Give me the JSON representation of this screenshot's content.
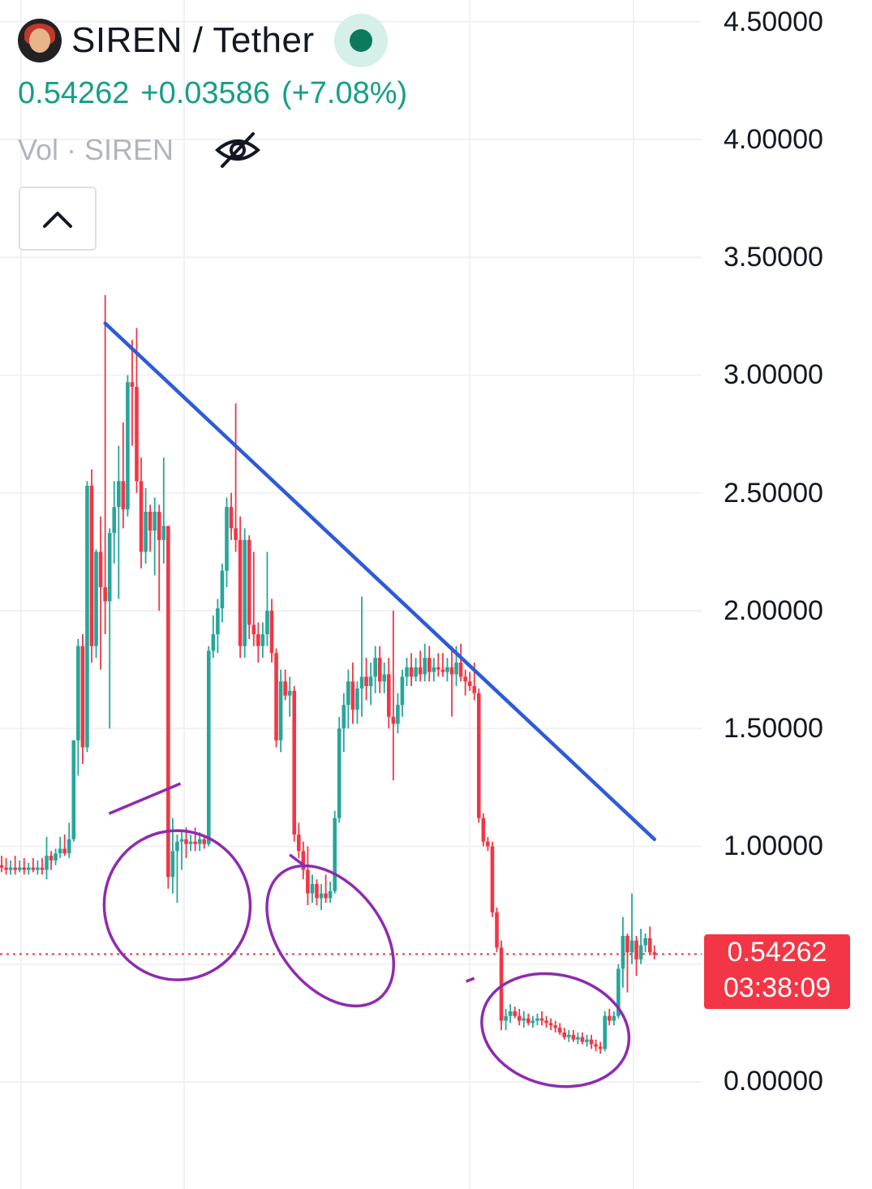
{
  "header": {
    "symbol_title": "SIREN / Tether",
    "last_price": "0.54262",
    "change": "+0.03586",
    "change_pct": "(+7.08%)",
    "volume_label": "Vol · SIREN"
  },
  "price_axis": {
    "labels": [
      "4.50000",
      "4.00000",
      "3.50000",
      "3.00000",
      "2.50000",
      "2.00000",
      "1.50000",
      "1.00000",
      "0.00000"
    ]
  },
  "price_tag": {
    "price": "0.54262",
    "countdown": "03:38:09"
  },
  "colors": {
    "up": "#26a69a",
    "down": "#f23645",
    "trendline": "#2e5bd8",
    "annotation": "#8e2bb0",
    "price_line": "#f23645"
  },
  "chart_data": {
    "type": "candlestick",
    "title": "SIREN / Tether",
    "ylim": [
      0,
      4.6
    ],
    "grid": true,
    "last_price": 0.54262,
    "candles": [
      {
        "o": 0.92,
        "h": 0.96,
        "l": 0.89,
        "c": 0.91
      },
      {
        "o": 0.91,
        "h": 0.95,
        "l": 0.88,
        "c": 0.9
      },
      {
        "o": 0.9,
        "h": 0.94,
        "l": 0.88,
        "c": 0.91
      },
      {
        "o": 0.91,
        "h": 0.96,
        "l": 0.88,
        "c": 0.9
      },
      {
        "o": 0.9,
        "h": 0.94,
        "l": 0.89,
        "c": 0.91
      },
      {
        "o": 0.91,
        "h": 0.95,
        "l": 0.88,
        "c": 0.9
      },
      {
        "o": 0.9,
        "h": 0.93,
        "l": 0.88,
        "c": 0.91
      },
      {
        "o": 0.91,
        "h": 0.95,
        "l": 0.89,
        "c": 0.9
      },
      {
        "o": 0.9,
        "h": 0.94,
        "l": 0.88,
        "c": 0.91
      },
      {
        "o": 0.91,
        "h": 0.95,
        "l": 0.88,
        "c": 0.9
      },
      {
        "o": 0.9,
        "h": 1.04,
        "l": 0.86,
        "c": 0.96
      },
      {
        "o": 0.96,
        "h": 0.98,
        "l": 0.9,
        "c": 0.94
      },
      {
        "o": 0.94,
        "h": 0.99,
        "l": 0.92,
        "c": 0.97
      },
      {
        "o": 0.97,
        "h": 1.04,
        "l": 0.95,
        "c": 0.99
      },
      {
        "o": 0.99,
        "h": 1.05,
        "l": 0.96,
        "c": 0.97
      },
      {
        "o": 0.97,
        "h": 1.1,
        "l": 0.95,
        "c": 1.03
      },
      {
        "o": 1.03,
        "h": 1.45,
        "l": 1.02,
        "c": 1.45
      },
      {
        "o": 1.45,
        "h": 1.88,
        "l": 1.3,
        "c": 1.85
      },
      {
        "o": 1.85,
        "h": 1.9,
        "l": 1.35,
        "c": 1.42
      },
      {
        "o": 1.42,
        "h": 2.55,
        "l": 1.4,
        "c": 2.53
      },
      {
        "o": 2.53,
        "h": 2.6,
        "l": 1.78,
        "c": 1.85
      },
      {
        "o": 1.85,
        "h": 2.26,
        "l": 1.8,
        "c": 2.25
      },
      {
        "o": 2.25,
        "h": 2.4,
        "l": 1.75,
        "c": 2.1
      },
      {
        "o": 2.1,
        "h": 3.34,
        "l": 1.9,
        "c": 2.04
      },
      {
        "o": 2.04,
        "h": 2.35,
        "l": 1.5,
        "c": 2.33
      },
      {
        "o": 2.33,
        "h": 2.55,
        "l": 2.2,
        "c": 2.44
      },
      {
        "o": 2.44,
        "h": 2.7,
        "l": 2.05,
        "c": 2.55
      },
      {
        "o": 2.55,
        "h": 2.8,
        "l": 2.35,
        "c": 2.43
      },
      {
        "o": 2.43,
        "h": 3.0,
        "l": 2.4,
        "c": 2.97
      },
      {
        "o": 2.97,
        "h": 3.15,
        "l": 2.7,
        "c": 2.95
      },
      {
        "o": 2.95,
        "h": 3.2,
        "l": 2.5,
        "c": 2.55
      },
      {
        "o": 2.55,
        "h": 2.65,
        "l": 2.18,
        "c": 2.25
      },
      {
        "o": 2.25,
        "h": 2.52,
        "l": 2.2,
        "c": 2.42
      },
      {
        "o": 2.42,
        "h": 2.45,
        "l": 2.25,
        "c": 2.34
      },
      {
        "o": 2.34,
        "h": 2.48,
        "l": 2.15,
        "c": 2.42
      },
      {
        "o": 2.42,
        "h": 2.45,
        "l": 2.0,
        "c": 2.3
      },
      {
        "o": 2.3,
        "h": 2.65,
        "l": 2.2,
        "c": 2.36
      },
      {
        "o": 2.36,
        "h": 2.36,
        "l": 0.82,
        "c": 0.87
      },
      {
        "o": 0.87,
        "h": 1.12,
        "l": 0.8,
        "c": 0.98
      },
      {
        "o": 0.98,
        "h": 1.05,
        "l": 0.76,
        "c": 1.02
      },
      {
        "o": 1.02,
        "h": 1.07,
        "l": 0.9,
        "c": 1.03
      },
      {
        "o": 1.03,
        "h": 1.08,
        "l": 0.95,
        "c": 1.01
      },
      {
        "o": 1.01,
        "h": 1.05,
        "l": 0.98,
        "c": 1.02
      },
      {
        "o": 1.02,
        "h": 1.08,
        "l": 0.98,
        "c": 1.01
      },
      {
        "o": 1.01,
        "h": 1.06,
        "l": 0.98,
        "c": 1.03
      },
      {
        "o": 1.03,
        "h": 1.05,
        "l": 0.99,
        "c": 1.01
      },
      {
        "o": 1.01,
        "h": 1.85,
        "l": 1.0,
        "c": 1.83
      },
      {
        "o": 1.83,
        "h": 1.98,
        "l": 1.8,
        "c": 1.9
      },
      {
        "o": 1.9,
        "h": 2.05,
        "l": 1.82,
        "c": 2.01
      },
      {
        "o": 2.01,
        "h": 2.2,
        "l": 1.95,
        "c": 2.17
      },
      {
        "o": 2.17,
        "h": 2.48,
        "l": 2.1,
        "c": 2.44
      },
      {
        "o": 2.44,
        "h": 2.5,
        "l": 2.3,
        "c": 2.35
      },
      {
        "o": 2.35,
        "h": 2.88,
        "l": 2.25,
        "c": 2.3
      },
      {
        "o": 2.3,
        "h": 2.4,
        "l": 1.8,
        "c": 1.85
      },
      {
        "o": 1.85,
        "h": 2.35,
        "l": 1.8,
        "c": 2.3
      },
      {
        "o": 2.3,
        "h": 2.32,
        "l": 1.88,
        "c": 1.94
      },
      {
        "o": 1.94,
        "h": 2.25,
        "l": 1.85,
        "c": 1.9
      },
      {
        "o": 1.9,
        "h": 1.95,
        "l": 1.78,
        "c": 1.85
      },
      {
        "o": 1.85,
        "h": 1.95,
        "l": 1.8,
        "c": 1.9
      },
      {
        "o": 1.9,
        "h": 2.25,
        "l": 1.85,
        "c": 2.0
      },
      {
        "o": 2.0,
        "h": 2.05,
        "l": 1.78,
        "c": 1.82
      },
      {
        "o": 1.82,
        "h": 1.84,
        "l": 1.42,
        "c": 1.45
      },
      {
        "o": 1.45,
        "h": 1.75,
        "l": 1.4,
        "c": 1.7
      },
      {
        "o": 1.7,
        "h": 1.75,
        "l": 1.62,
        "c": 1.64
      },
      {
        "o": 1.64,
        "h": 1.72,
        "l": 1.55,
        "c": 1.66
      },
      {
        "o": 1.66,
        "h": 1.68,
        "l": 1.02,
        "c": 1.05
      },
      {
        "o": 1.05,
        "h": 1.1,
        "l": 0.95,
        "c": 0.98
      },
      {
        "o": 0.98,
        "h": 1.02,
        "l": 0.86,
        "c": 0.9
      },
      {
        "o": 0.9,
        "h": 1.0,
        "l": 0.75,
        "c": 0.8
      },
      {
        "o": 0.8,
        "h": 0.88,
        "l": 0.76,
        "c": 0.84
      },
      {
        "o": 0.84,
        "h": 0.86,
        "l": 0.75,
        "c": 0.78
      },
      {
        "o": 0.78,
        "h": 0.84,
        "l": 0.73,
        "c": 0.8
      },
      {
        "o": 0.8,
        "h": 0.88,
        "l": 0.76,
        "c": 0.78
      },
      {
        "o": 0.78,
        "h": 0.85,
        "l": 0.76,
        "c": 0.81
      },
      {
        "o": 0.81,
        "h": 1.15,
        "l": 0.8,
        "c": 1.12
      },
      {
        "o": 1.12,
        "h": 1.55,
        "l": 1.1,
        "c": 1.5
      },
      {
        "o": 1.5,
        "h": 1.65,
        "l": 1.4,
        "c": 1.6
      },
      {
        "o": 1.6,
        "h": 1.75,
        "l": 1.5,
        "c": 1.7
      },
      {
        "o": 1.7,
        "h": 1.78,
        "l": 1.52,
        "c": 1.58
      },
      {
        "o": 1.58,
        "h": 1.7,
        "l": 1.52,
        "c": 1.67
      },
      {
        "o": 1.67,
        "h": 2.06,
        "l": 1.55,
        "c": 1.72
      },
      {
        "o": 1.72,
        "h": 1.8,
        "l": 1.62,
        "c": 1.68
      },
      {
        "o": 1.68,
        "h": 1.78,
        "l": 1.6,
        "c": 1.72
      },
      {
        "o": 1.72,
        "h": 1.85,
        "l": 1.65,
        "c": 1.8
      },
      {
        "o": 1.8,
        "h": 1.85,
        "l": 1.65,
        "c": 1.7
      },
      {
        "o": 1.7,
        "h": 1.78,
        "l": 1.65,
        "c": 1.73
      },
      {
        "o": 1.73,
        "h": 1.8,
        "l": 1.5,
        "c": 1.55
      },
      {
        "o": 1.55,
        "h": 2.0,
        "l": 1.28,
        "c": 1.52
      },
      {
        "o": 1.52,
        "h": 1.65,
        "l": 1.48,
        "c": 1.6
      },
      {
        "o": 1.6,
        "h": 1.75,
        "l": 1.55,
        "c": 1.72
      },
      {
        "o": 1.72,
        "h": 1.8,
        "l": 1.68,
        "c": 1.76
      },
      {
        "o": 1.76,
        "h": 1.82,
        "l": 1.68,
        "c": 1.72
      },
      {
        "o": 1.72,
        "h": 1.8,
        "l": 1.7,
        "c": 1.76
      },
      {
        "o": 1.76,
        "h": 1.83,
        "l": 1.7,
        "c": 1.73
      },
      {
        "o": 1.73,
        "h": 1.86,
        "l": 1.7,
        "c": 1.8
      },
      {
        "o": 1.8,
        "h": 1.85,
        "l": 1.7,
        "c": 1.74
      },
      {
        "o": 1.74,
        "h": 1.8,
        "l": 1.7,
        "c": 1.76
      },
      {
        "o": 1.76,
        "h": 1.82,
        "l": 1.72,
        "c": 1.75
      },
      {
        "o": 1.75,
        "h": 1.82,
        "l": 1.72,
        "c": 1.74
      },
      {
        "o": 1.74,
        "h": 1.8,
        "l": 1.7,
        "c": 1.76
      },
      {
        "o": 1.76,
        "h": 1.85,
        "l": 1.55,
        "c": 1.73
      },
      {
        "o": 1.73,
        "h": 1.85,
        "l": 1.68,
        "c": 1.78
      },
      {
        "o": 1.78,
        "h": 1.86,
        "l": 1.7,
        "c": 1.72
      },
      {
        "o": 1.72,
        "h": 1.75,
        "l": 1.64,
        "c": 1.7
      },
      {
        "o": 1.7,
        "h": 1.74,
        "l": 1.66,
        "c": 1.68
      },
      {
        "o": 1.68,
        "h": 1.78,
        "l": 1.62,
        "c": 1.65
      },
      {
        "o": 1.65,
        "h": 1.67,
        "l": 1.1,
        "c": 1.12
      },
      {
        "o": 1.12,
        "h": 1.14,
        "l": 1.0,
        "c": 1.02
      },
      {
        "o": 1.02,
        "h": 1.04,
        "l": 0.98,
        "c": 1.0
      },
      {
        "o": 1.0,
        "h": 1.02,
        "l": 0.7,
        "c": 0.72
      },
      {
        "o": 0.72,
        "h": 0.74,
        "l": 0.55,
        "c": 0.57
      },
      {
        "o": 0.57,
        "h": 0.6,
        "l": 0.22,
        "c": 0.26
      },
      {
        "o": 0.26,
        "h": 0.31,
        "l": 0.22,
        "c": 0.28
      },
      {
        "o": 0.28,
        "h": 0.33,
        "l": 0.25,
        "c": 0.3
      },
      {
        "o": 0.3,
        "h": 0.32,
        "l": 0.27,
        "c": 0.28
      },
      {
        "o": 0.28,
        "h": 0.31,
        "l": 0.24,
        "c": 0.26
      },
      {
        "o": 0.26,
        "h": 0.3,
        "l": 0.23,
        "c": 0.27
      },
      {
        "o": 0.27,
        "h": 0.29,
        "l": 0.24,
        "c": 0.25
      },
      {
        "o": 0.25,
        "h": 0.28,
        "l": 0.23,
        "c": 0.26
      },
      {
        "o": 0.26,
        "h": 0.29,
        "l": 0.24,
        "c": 0.27
      },
      {
        "o": 0.27,
        "h": 0.3,
        "l": 0.24,
        "c": 0.26
      },
      {
        "o": 0.26,
        "h": 0.28,
        "l": 0.23,
        "c": 0.25
      },
      {
        "o": 0.25,
        "h": 0.27,
        "l": 0.22,
        "c": 0.24
      },
      {
        "o": 0.24,
        "h": 0.26,
        "l": 0.21,
        "c": 0.23
      },
      {
        "o": 0.23,
        "h": 0.25,
        "l": 0.2,
        "c": 0.21
      },
      {
        "o": 0.21,
        "h": 0.23,
        "l": 0.18,
        "c": 0.19
      },
      {
        "o": 0.19,
        "h": 0.22,
        "l": 0.17,
        "c": 0.2
      },
      {
        "o": 0.2,
        "h": 0.22,
        "l": 0.17,
        "c": 0.18
      },
      {
        "o": 0.18,
        "h": 0.21,
        "l": 0.16,
        "c": 0.19
      },
      {
        "o": 0.19,
        "h": 0.21,
        "l": 0.16,
        "c": 0.17
      },
      {
        "o": 0.17,
        "h": 0.2,
        "l": 0.15,
        "c": 0.18
      },
      {
        "o": 0.18,
        "h": 0.2,
        "l": 0.14,
        "c": 0.16
      },
      {
        "o": 0.16,
        "h": 0.18,
        "l": 0.13,
        "c": 0.15
      },
      {
        "o": 0.15,
        "h": 0.17,
        "l": 0.12,
        "c": 0.14
      },
      {
        "o": 0.14,
        "h": 0.3,
        "l": 0.13,
        "c": 0.28
      },
      {
        "o": 0.28,
        "h": 0.31,
        "l": 0.24,
        "c": 0.26
      },
      {
        "o": 0.26,
        "h": 0.3,
        "l": 0.24,
        "c": 0.28
      },
      {
        "o": 0.28,
        "h": 0.5,
        "l": 0.27,
        "c": 0.48
      },
      {
        "o": 0.48,
        "h": 0.7,
        "l": 0.4,
        "c": 0.62
      },
      {
        "o": 0.62,
        "h": 0.63,
        "l": 0.38,
        "c": 0.55
      },
      {
        "o": 0.55,
        "h": 0.8,
        "l": 0.5,
        "c": 0.6
      },
      {
        "o": 0.6,
        "h": 0.62,
        "l": 0.45,
        "c": 0.52
      },
      {
        "o": 0.52,
        "h": 0.65,
        "l": 0.5,
        "c": 0.58
      },
      {
        "o": 0.58,
        "h": 0.63,
        "l": 0.55,
        "c": 0.61
      },
      {
        "o": 0.61,
        "h": 0.66,
        "l": 0.54,
        "c": 0.55
      },
      {
        "o": 0.55,
        "h": 0.58,
        "l": 0.52,
        "c": 0.54
      }
    ],
    "trendline": {
      "from": [
        23,
        3.22
      ],
      "to": [
        145,
        1.03
      ]
    },
    "annotations": [
      {
        "type": "circle",
        "center_index": 39,
        "center_price": 0.75
      },
      {
        "type": "circle",
        "center_index": 73,
        "center_price": 0.62
      },
      {
        "type": "circle",
        "center_index": 123,
        "center_price": 0.22
      }
    ]
  }
}
